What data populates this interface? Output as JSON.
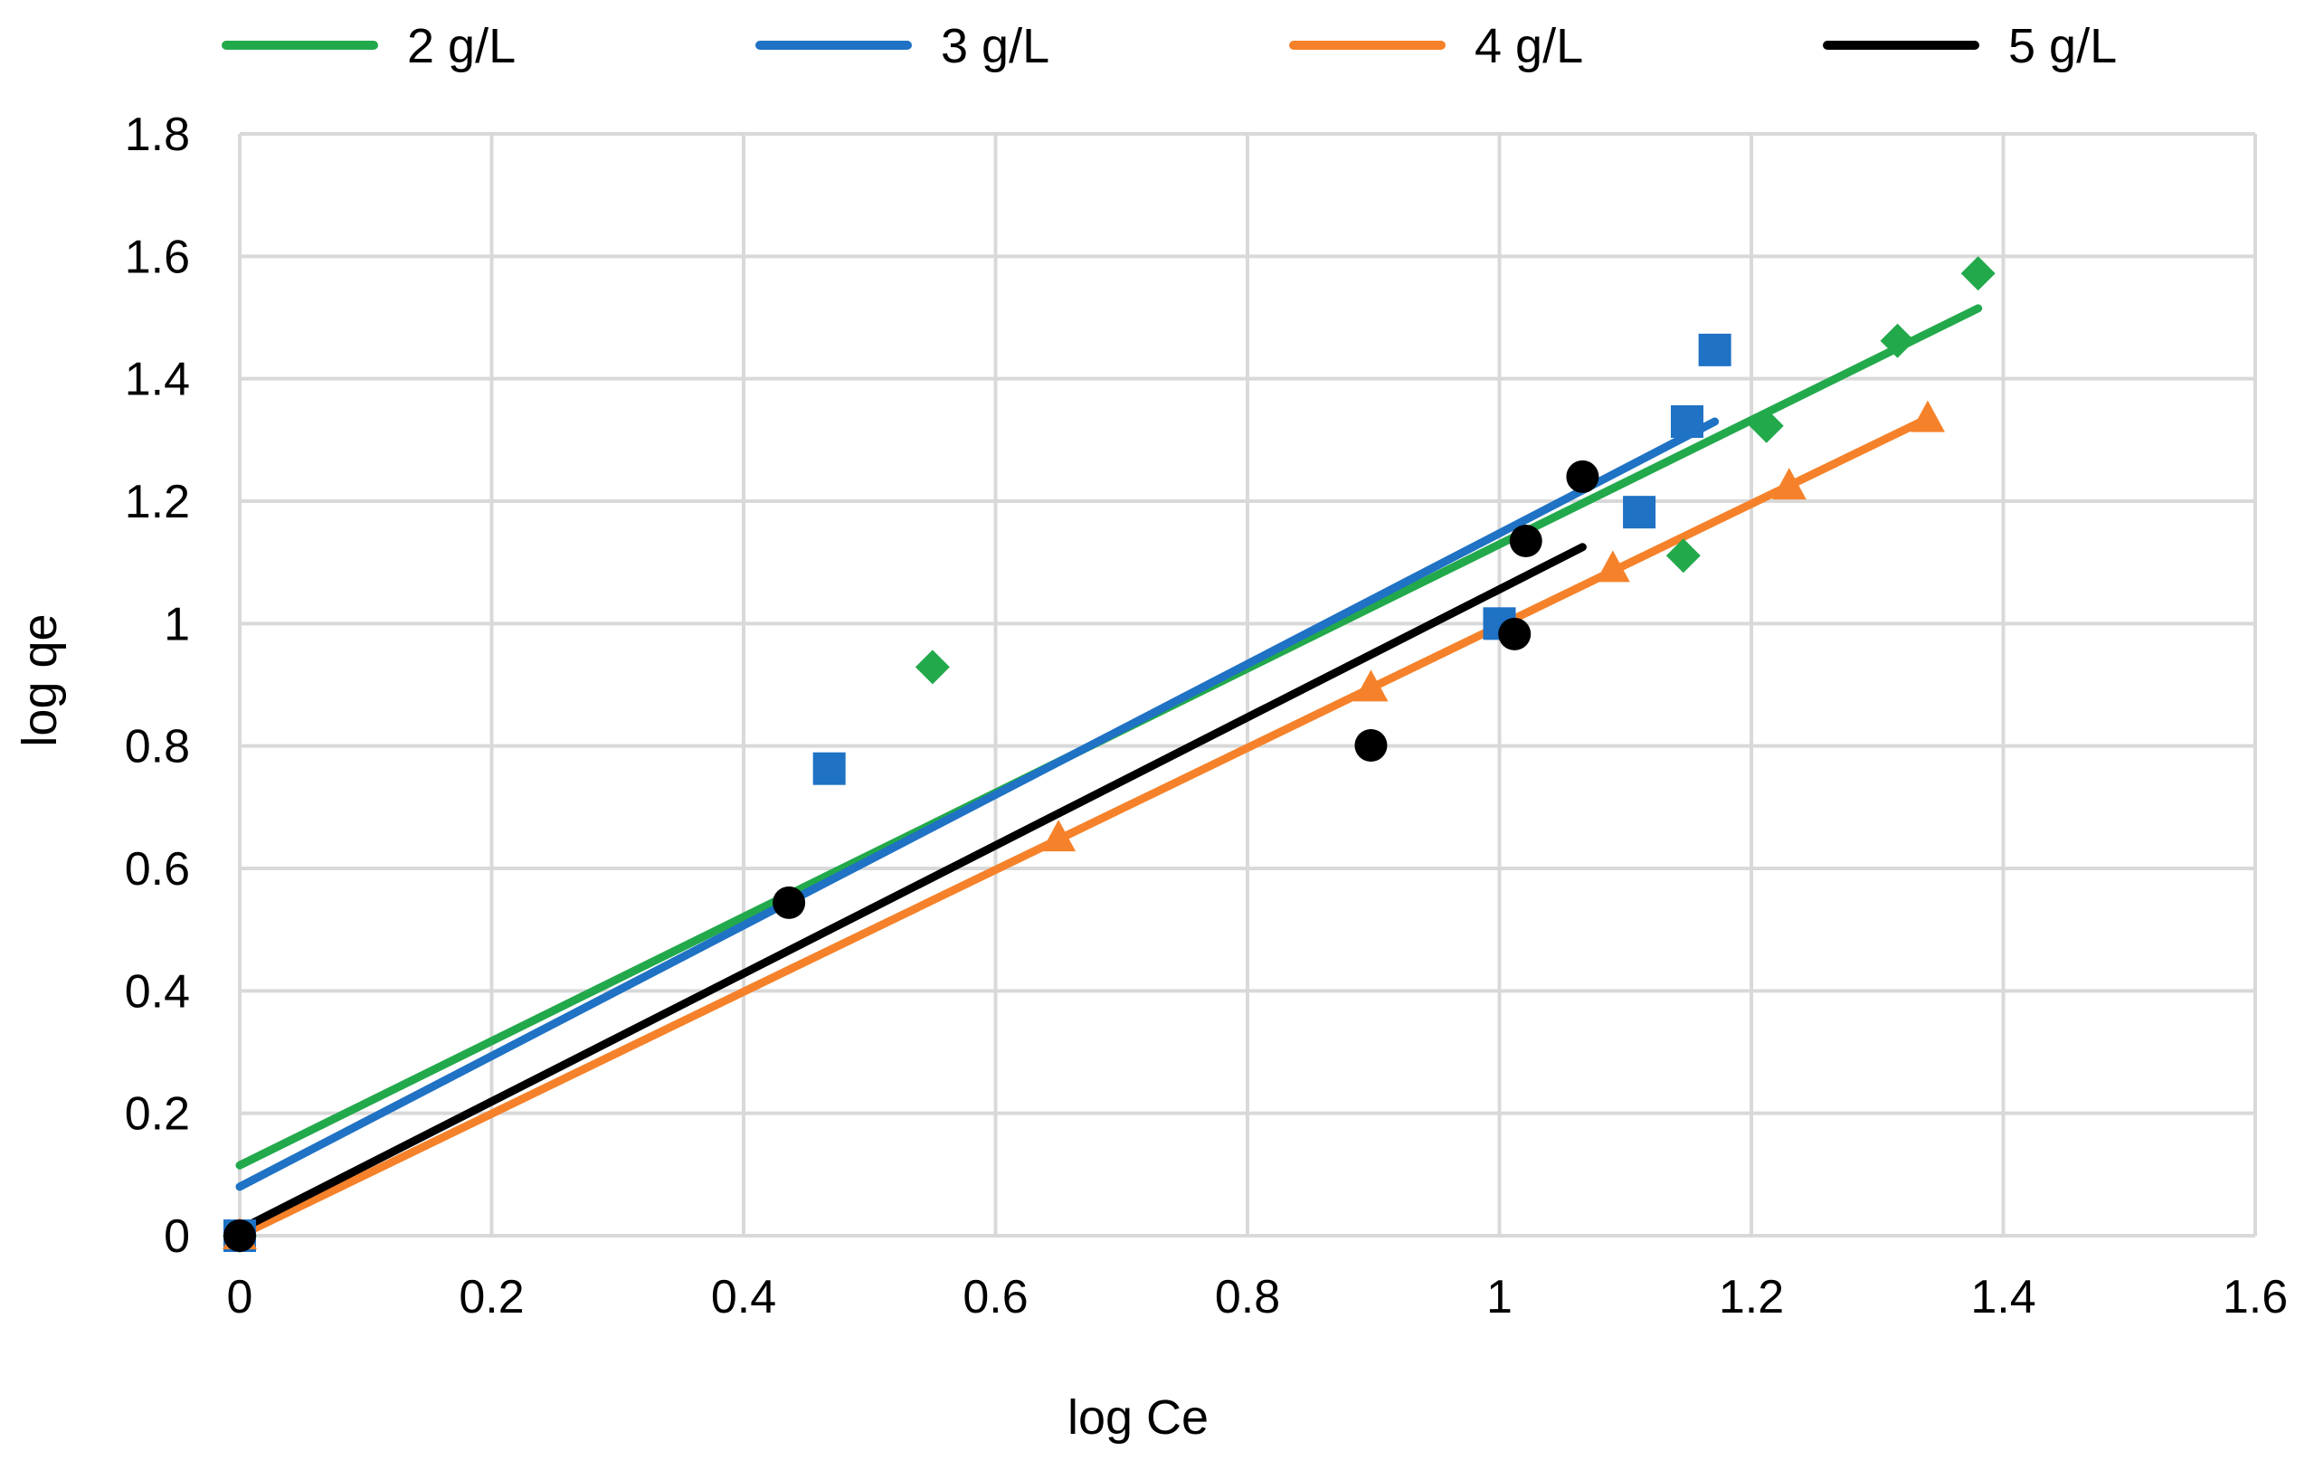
{
  "chart_data": {
    "type": "scatter",
    "title": "",
    "xlabel": "log Ce",
    "ylabel": "log qe",
    "xlim": [
      0,
      1.6
    ],
    "ylim": [
      0,
      1.8
    ],
    "xticks": [
      0,
      0.2,
      0.4,
      0.6,
      0.8,
      1,
      1.2,
      1.4,
      1.6
    ],
    "yticks": [
      0,
      0.2,
      0.4,
      0.6,
      0.8,
      1,
      1.2,
      1.4,
      1.6,
      1.8
    ],
    "xtick_labels": [
      "0",
      "0.2",
      "0.4",
      "0.6",
      "0.8",
      "1",
      "1.2",
      "1.4",
      "1.6"
    ],
    "ytick_labels": [
      "0",
      "0.2",
      "0.4",
      "0.6",
      "0.8",
      "1",
      "1.2",
      "1.4",
      "1.6",
      "1.8"
    ],
    "grid": true,
    "legend_position": "top",
    "series": [
      {
        "name": "2 g/L",
        "color": "#22a94b",
        "marker": "diamond",
        "x": [
          0,
          0.55,
          1.146,
          1.212,
          1.316,
          1.38
        ],
        "y": [
          0,
          0.929,
          1.111,
          1.323,
          1.462,
          1.572
        ],
        "trendline": {
          "x": [
            0,
            1.38
          ],
          "y": [
            0.115,
            1.515
          ]
        }
      },
      {
        "name": "3 g/L",
        "color": "#1f72c4",
        "marker": "square",
        "x": [
          0,
          0.468,
          1.0,
          1.111,
          1.149,
          1.171
        ],
        "y": [
          0,
          0.763,
          1.0,
          1.182,
          1.33,
          1.447
        ],
        "trendline": {
          "x": [
            0,
            1.171
          ],
          "y": [
            0.08,
            1.33
          ]
        }
      },
      {
        "name": "4 g/L",
        "color": "#f5822a",
        "marker": "triangle",
        "x": [
          0,
          0.65,
          0.898,
          1.09,
          1.23,
          1.34
        ],
        "y": [
          0,
          0.65,
          0.895,
          1.09,
          1.225,
          1.335
        ],
        "trendline": {
          "x": [
            0,
            1.34
          ],
          "y": [
            0,
            1.335
          ]
        }
      },
      {
        "name": "5 g/L",
        "color": "#000000",
        "marker": "circle",
        "x": [
          0,
          0.436,
          0.898,
          1.012,
          1.021,
          1.066
        ],
        "y": [
          0,
          0.544,
          0.801,
          0.983,
          1.135,
          1.24
        ],
        "trendline": {
          "x": [
            0,
            1.066
          ],
          "y": [
            0.01,
            1.125
          ]
        }
      }
    ]
  }
}
